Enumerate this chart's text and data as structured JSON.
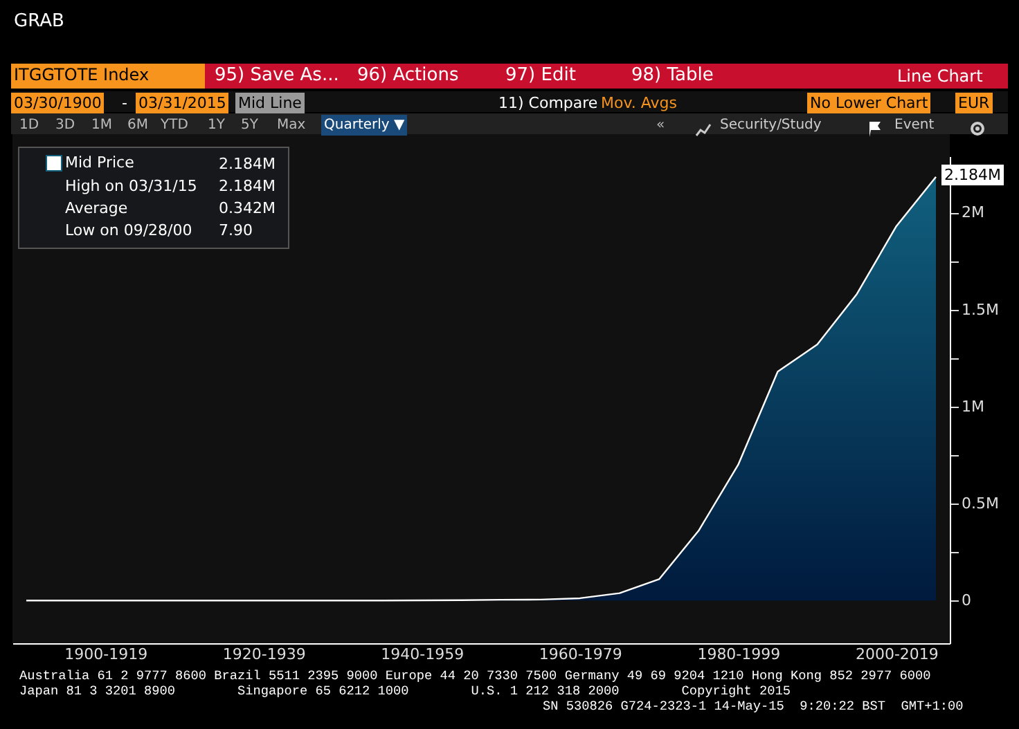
{
  "chart_data": {
    "type": "area",
    "title": "ITGGTOTE Index",
    "annotations": [
      "GRAB",
      "95) Save As...",
      "96) Actions",
      "97) Edit",
      "98) Table",
      "Line Chart",
      "03/30/1900",
      "-",
      "03/31/2015",
      "Mid Line",
      "11) Compare",
      "Mov. Avgs",
      "No Lower Chart",
      "EUR",
      "1D",
      "3D",
      "1M",
      "6M",
      "YTD",
      "1Y",
      "5Y",
      "Max",
      "Quarterly ▼",
      "«",
      "Security/Study",
      "Event",
      "2.184M",
      "High on 03/31/15",
      "2.184M",
      "Average",
      "0.342M",
      "Low on 09/28/00",
      "7.90",
      "Australia 61 2 9777 8600 Brazil 5511 2395 9000 Europe 44 20 7330 7500 Germany 49 69 9204 1210 Hong Kong 852 2977 6000",
      "Japan 81 3 3201 8900        Singapore 65 6212 1000        U.S. 1 212 318 2000        Copyright 2015",
      "SN 530826 G724-2323-1 14-May-15  9:20:22 BST  GMT+1:00",
      "2.184M"
    ],
    "categories": [
      null,
      null,
      "1900-1919",
      null,
      null,
      null,
      "1920-1939",
      null,
      null,
      null,
      "1940-1959",
      null,
      null,
      null,
      "1960-1979",
      null,
      null,
      null,
      "1980-1999",
      null,
      null,
      null,
      "2000-2019",
      null
    ],
    "series": [
      {
        "name": "Mid Price",
        "color": "#11607e",
        "values": [
          0,
          0,
          0,
          0,
          0,
          0,
          0,
          0,
          0,
          0,
          1000,
          2000,
          4000,
          5000,
          12000,
          38000,
          110000,
          360000,
          700000,
          1180000,
          1320000,
          1580000,
          1930000,
          2184000
        ]
      }
    ],
    "ylim": [
      -220000,
      2290000
    ],
    "yticks": [
      {
        "value": 0,
        "label": "0"
      },
      {
        "value": 250000,
        "label": null
      },
      {
        "value": 500000,
        "label": "0.5M"
      },
      {
        "value": 750000,
        "label": null
      },
      {
        "value": 1000000,
        "label": "1M"
      },
      {
        "value": 1250000,
        "label": null
      },
      {
        "value": 1500000,
        "label": "1.5M"
      },
      {
        "value": 1750000,
        "label": null
      },
      {
        "value": 2000000,
        "label": "2M"
      }
    ],
    "legend": "top left"
  }
}
